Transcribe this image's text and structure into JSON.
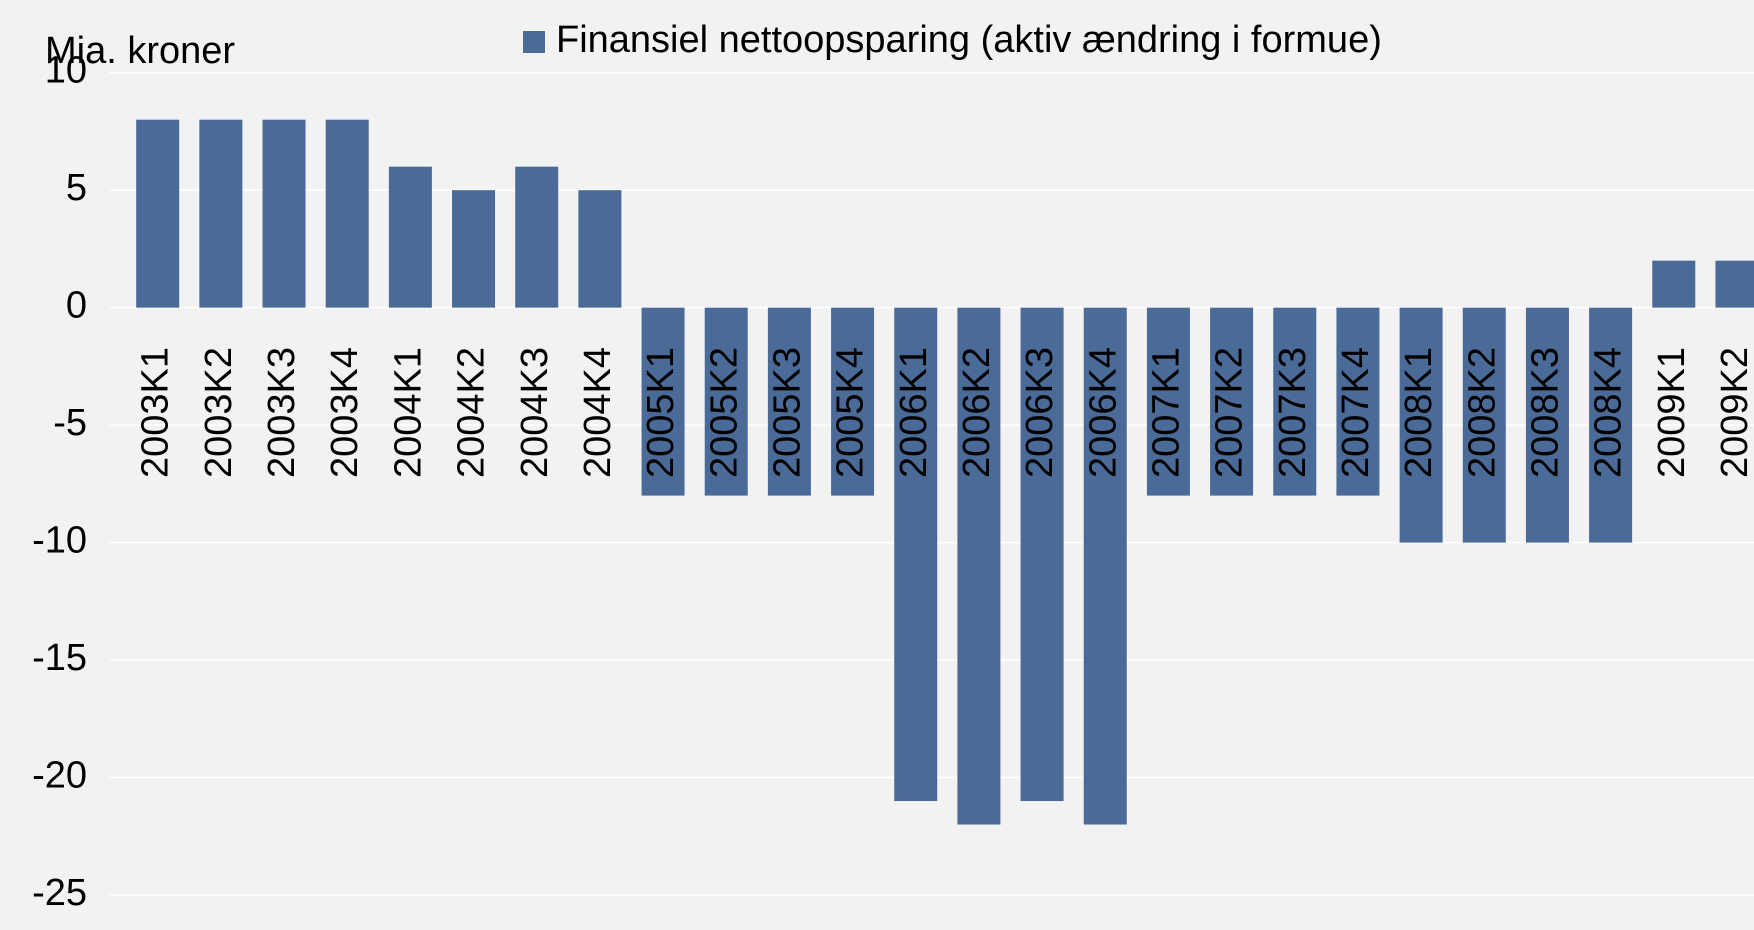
{
  "chart_data": {
    "type": "bar",
    "y_axis_label": "Mia. kroner",
    "categories": [
      "2003K1",
      "2003K2",
      "2003K3",
      "2003K4",
      "2004K1",
      "2004K2",
      "2004K3",
      "2004K4",
      "2005K1",
      "2005K2",
      "2005K3",
      "2005K4",
      "2006K1",
      "2006K2",
      "2006K3",
      "2006K4",
      "2007K1",
      "2007K2",
      "2007K3",
      "2007K4",
      "2008K1",
      "2008K2",
      "2008K3",
      "2008K4",
      "2009K1",
      "2009K2"
    ],
    "series": [
      {
        "name": "Finansiel nettoopsparing (aktiv ændring i formue)",
        "color": "#4a6a97",
        "values": [
          8,
          8,
          8,
          8,
          6,
          5,
          6,
          5,
          -8,
          -8,
          -8,
          -8,
          -21,
          -22,
          -21,
          -22,
          -8,
          -8,
          -8,
          -8,
          -10,
          -10,
          -10,
          -10,
          2,
          2
        ]
      }
    ],
    "ylim": [
      -25,
      10
    ],
    "yticks": [
      -25,
      -20,
      -15,
      -10,
      -5,
      0,
      5,
      10
    ],
    "grid": true,
    "legend": "top"
  }
}
